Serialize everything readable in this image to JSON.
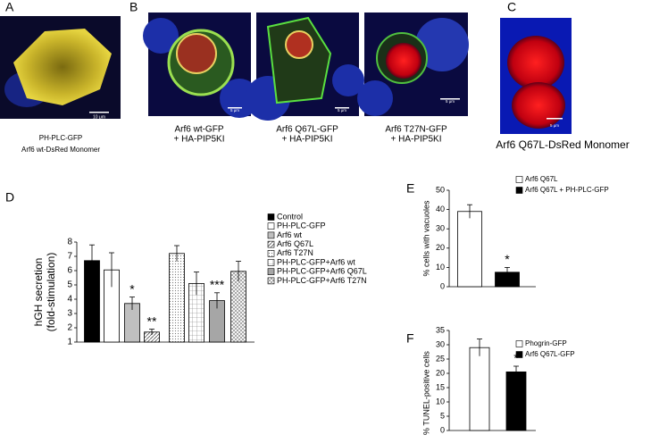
{
  "panels": {
    "A": {
      "letter": "A",
      "scale": "10 μm",
      "caption": [
        "PH-PLC-GFP",
        "Arf6 wt-DsRed Monomer"
      ]
    },
    "B": {
      "letter": "B",
      "images": [
        {
          "scale": "5 μm",
          "caption": [
            "Arf6 wt-GFP",
            "+ HA-PIP5KI"
          ]
        },
        {
          "scale": "5 μm",
          "caption": [
            "Arf6 Q67L-GFP",
            "+ HA-PIP5KI"
          ]
        },
        {
          "scale": "5 μm",
          "caption": [
            "Arf6 T27N-GFP",
            "+ HA-PIP5KI"
          ]
        }
      ]
    },
    "C": {
      "letter": "C",
      "scale": "5 μm",
      "caption": "Arf6 Q67L-DsRed Monomer"
    }
  },
  "chart_data": [
    {
      "type": "bar",
      "letter": "D",
      "ylabel": [
        "hGH secretion",
        "(fold-stimulation)"
      ],
      "categories": [
        "Control",
        "PH-PLC-GFP",
        "Arf6 wt",
        "Arf6 Q67L",
        "Arf6 T27N",
        "PH-PLC-GFP+Arf6 wt",
        "PH-PLC-GFP+Arf6 Q67L",
        "PH-PLC-GFP+Arf6 T27N"
      ],
      "values": [
        6.7,
        6.05,
        3.7,
        1.7,
        7.2,
        5.1,
        3.9,
        5.95
      ],
      "errors": [
        1.1,
        1.2,
        0.45,
        0.2,
        0.55,
        0.8,
        0.55,
        0.7
      ],
      "annotations": [
        null,
        null,
        "*",
        "**",
        null,
        null,
        "***",
        null
      ],
      "fills": [
        "#000000",
        "#ffffff",
        "#bfbfbf",
        "hatch",
        "dots",
        "grid",
        "#a6a6a6",
        "cross"
      ],
      "ylim": [
        1,
        8
      ],
      "yticks": [
        1,
        2,
        3,
        4,
        5,
        6,
        7,
        8
      ]
    },
    {
      "type": "bar",
      "letter": "E",
      "ylabel": [
        "% cells with vacuoles"
      ],
      "categories": [
        "Arf6 Q67L",
        "Arf6 Q67L + PH-PLC-GFP"
      ],
      "values": [
        39,
        7.5
      ],
      "errors": [
        3.5,
        2.5
      ],
      "annotations": [
        null,
        "*"
      ],
      "fills": [
        "#ffffff",
        "#000000"
      ],
      "ylim": [
        0,
        50
      ],
      "yticks": [
        0,
        10,
        20,
        30,
        40,
        50
      ]
    },
    {
      "type": "bar",
      "letter": "F",
      "ylabel": [
        "% TUNEL-positive cells"
      ],
      "categories": [
        "Phogrin-GFP",
        "Arf6 Q67L-GFP"
      ],
      "values": [
        29,
        20.5
      ],
      "errors": [
        3,
        2
      ],
      "annotations": [
        null,
        "*"
      ],
      "fills": [
        "#ffffff",
        "#000000"
      ],
      "ylim": [
        0,
        35
      ],
      "yticks": [
        0,
        5,
        10,
        15,
        20,
        25,
        30,
        35
      ]
    }
  ]
}
